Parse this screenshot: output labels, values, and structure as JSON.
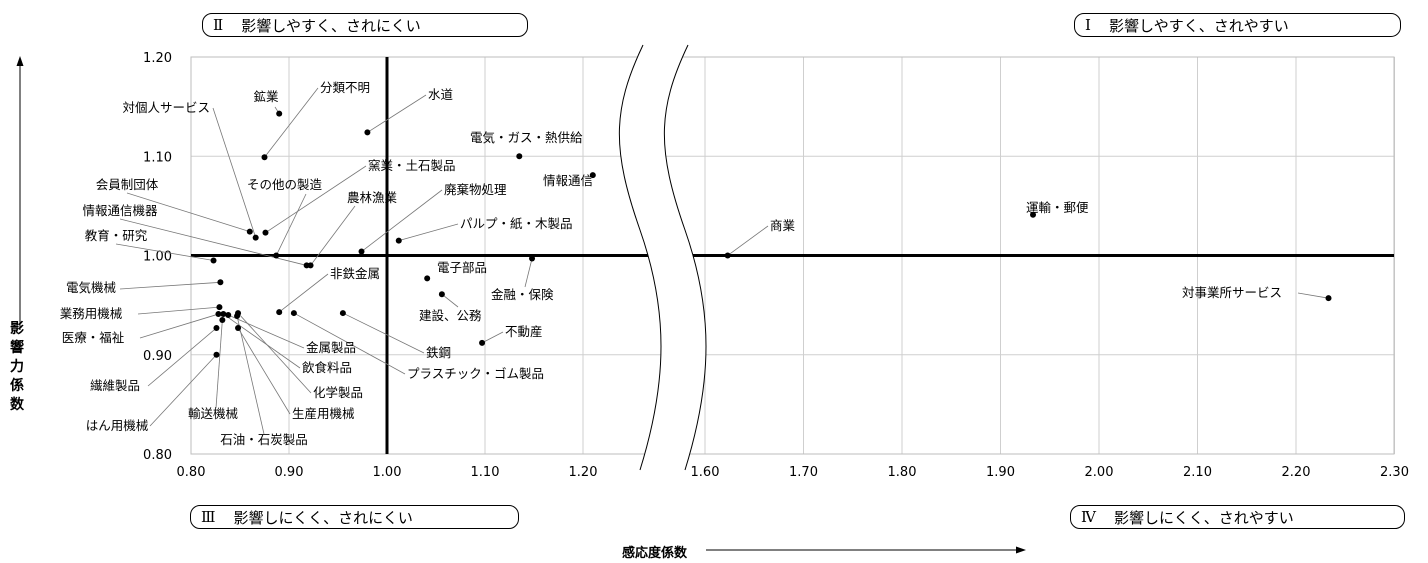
{
  "chart_data": {
    "type": "scatter",
    "title": "",
    "xlabel": "感応度係数",
    "ylabel": "影響力係数",
    "xlim": [
      0.8,
      2.3
    ],
    "ylim": [
      0.8,
      1.2
    ],
    "axis_break": [
      1.25,
      1.55
    ],
    "grid": true,
    "x_ticks_left": [
      "0.80",
      "0.90",
      "1.00",
      "1.10",
      "1.20"
    ],
    "x_ticks_right": [
      "1.60",
      "1.70",
      "1.80",
      "1.90",
      "2.00",
      "2.10",
      "2.20",
      "2.30"
    ],
    "y_ticks": [
      "0.80",
      "0.90",
      "1.00",
      "1.10",
      "1.20"
    ],
    "reference_lines": {
      "x": 1.0,
      "y": 1.0
    },
    "quadrants": [
      {
        "num": "Ⅱ",
        "text": "影響しやすく、されにくい"
      },
      {
        "num": "Ⅰ",
        "text": "影響しやすく、されやすい"
      },
      {
        "num": "Ⅲ",
        "text": "影響しにくく、されにくい"
      },
      {
        "num": "Ⅳ",
        "text": "影響しにくく、されやすい"
      }
    ],
    "points": [
      {
        "label": "鉱業",
        "x": 0.89,
        "y": 1.143
      },
      {
        "label": "分類不明",
        "x": 0.875,
        "y": 1.099
      },
      {
        "label": "対個人サービス",
        "x": 0.866,
        "y": 1.018
      },
      {
        "label": "水道",
        "x": 0.98,
        "y": 1.124
      },
      {
        "label": "電気・ガス・熱供給",
        "x": 1.135,
        "y": 1.1
      },
      {
        "label": "窯業・土石製品",
        "x": 0.876,
        "y": 1.023
      },
      {
        "label": "情報通信",
        "x": 1.21,
        "y": 1.081
      },
      {
        "label": "その他の製造",
        "x": 0.887,
        "y": 1.0
      },
      {
        "label": "会員制団体",
        "x": 0.86,
        "y": 1.024
      },
      {
        "label": "廃棄物処理",
        "x": 0.974,
        "y": 1.004
      },
      {
        "label": "農林漁業",
        "x": 0.922,
        "y": 0.99
      },
      {
        "label": "パルプ・紙・木製品",
        "x": 1.012,
        "y": 1.015
      },
      {
        "label": "情報通信機器",
        "x": 0.918,
        "y": 0.99
      },
      {
        "label": "教育・研究",
        "x": 0.823,
        "y": 0.995
      },
      {
        "label": "電気機械",
        "x": 0.83,
        "y": 0.973
      },
      {
        "label": "業務用機械",
        "x": 0.829,
        "y": 0.948
      },
      {
        "label": "医療・福祉",
        "x": 0.828,
        "y": 0.941
      },
      {
        "label": "繊維製品",
        "x": 0.826,
        "y": 0.927
      },
      {
        "label": "はん用機械",
        "x": 0.826,
        "y": 0.9
      },
      {
        "label": "非鉄金属",
        "x": 0.89,
        "y": 0.943
      },
      {
        "label": "鉄鋼",
        "x": 0.955,
        "y": 0.942
      },
      {
        "label": "金属製品",
        "x": 0.838,
        "y": 0.94
      },
      {
        "label": "飲食料品",
        "x": 0.833,
        "y": 0.941
      },
      {
        "label": "化学製品",
        "x": 0.848,
        "y": 0.942
      },
      {
        "label": "生産用機械",
        "x": 0.848,
        "y": 0.927
      },
      {
        "label": "輸送機械",
        "x": 0.832,
        "y": 0.935
      },
      {
        "label": "石油・石炭製品",
        "x": 0.847,
        "y": 0.939
      },
      {
        "label": "プラスチック・ゴム製品",
        "x": 0.905,
        "y": 0.942
      },
      {
        "label": "電子部品",
        "x": 1.041,
        "y": 0.977
      },
      {
        "label": "建設、公務",
        "x": 1.056,
        "y": 0.961
      },
      {
        "label": "金融・保険",
        "x": 1.148,
        "y": 0.997
      },
      {
        "label": "不動産",
        "x": 1.097,
        "y": 0.912
      },
      {
        "label": "商業",
        "x": 1.623,
        "y": 1.0
      },
      {
        "label": "運輸・郵便",
        "x": 1.933,
        "y": 1.041
      },
      {
        "label": "対事業所サービス",
        "x": 2.233,
        "y": 0.957
      }
    ]
  }
}
